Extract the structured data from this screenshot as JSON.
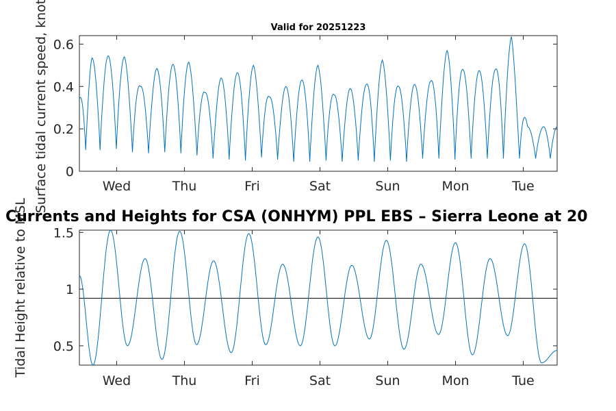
{
  "chart_data": [
    {
      "type": "line",
      "title": "Valid for 20251223",
      "ylabel": "Surface tidal current speed, knots",
      "xlabel": "",
      "xlim": [
        0,
        7.05
      ],
      "ylim": [
        0,
        0.64
      ],
      "yticks": [
        0,
        0.2,
        0.4,
        0.6
      ],
      "ytick_labels": [
        "0",
        "0.2",
        "0.4",
        "0.6"
      ],
      "xtick_positions": [
        0.55,
        1.55,
        2.55,
        3.55,
        4.55,
        5.55,
        6.55
      ],
      "xtick_labels": [
        "Wed",
        "Thu",
        "Fri",
        "Sat",
        "Sun",
        "Mon",
        "Tue"
      ],
      "line_color": "#0072bd",
      "series": [
        {
          "name": "current speed",
          "x": [
            0.0,
            0.185,
            0.425,
            0.665,
            0.9,
            1.14,
            1.38,
            1.615,
            1.855,
            2.09,
            2.33,
            2.57,
            2.805,
            3.045,
            3.28,
            3.52,
            3.76,
            3.995,
            4.235,
            4.47,
            4.71,
            4.945,
            5.185,
            5.425,
            5.66,
            5.9,
            6.14,
            6.375,
            6.615,
            6.85,
            7.05
          ],
          "values": [
            0.34,
            0.535,
            0.545,
            0.54,
            0.4,
            0.485,
            0.505,
            0.515,
            0.37,
            0.44,
            0.465,
            0.5,
            0.35,
            0.4,
            0.43,
            0.5,
            0.36,
            0.39,
            0.41,
            0.525,
            0.4,
            0.41,
            0.425,
            0.57,
            0.48,
            0.475,
            0.48,
            0.635,
            0.21,
            0.21,
            0.21
          ],
          "minima": [
            0.1,
            0.1,
            0.105,
            0.09,
            0.085,
            0.09,
            0.085,
            0.075,
            0.06,
            0.055,
            0.05,
            0.065,
            0.055,
            0.045,
            0.045,
            0.05,
            0.045,
            0.05,
            0.045,
            0.05,
            0.045,
            0.06,
            0.06,
            0.055,
            0.06,
            0.06,
            0.06
          ]
        }
      ]
    },
    {
      "type": "line",
      "title": "Currents and Heights for CSA (ONHYM) PPL EBS  – Sierra Leone at 20",
      "ylabel": "Tidal Height relative to MSL",
      "xlabel": "",
      "xlim": [
        0,
        7.05
      ],
      "ylim": [
        0.33,
        1.52
      ],
      "yticks": [
        0.5,
        1,
        1.5
      ],
      "ytick_labels": [
        "0.5",
        "1",
        "1.5"
      ],
      "xtick_positions": [
        0.55,
        1.55,
        2.55,
        3.55,
        4.55,
        5.55,
        6.55
      ],
      "xtick_labels": [
        "Wed",
        "Thu",
        "Fri",
        "Sat",
        "Sun",
        "Mon",
        "Tue"
      ],
      "reference_line": 0.92,
      "line_color": "#0072bd",
      "series": [
        {
          "name": "tidal height",
          "x": [
            0.0,
            0.2,
            0.46,
            0.71,
            0.97,
            1.22,
            1.48,
            1.73,
            1.98,
            2.24,
            2.5,
            2.75,
            3.0,
            3.26,
            3.52,
            3.77,
            4.02,
            4.28,
            4.53,
            4.79,
            5.04,
            5.3,
            5.55,
            5.8,
            6.06,
            6.32,
            6.57,
            6.82,
            7.05
          ],
          "values": [
            1.12,
            0.33,
            1.52,
            0.5,
            1.27,
            0.38,
            1.51,
            0.51,
            1.25,
            0.44,
            1.49,
            0.51,
            1.22,
            0.5,
            1.46,
            0.5,
            1.21,
            0.56,
            1.43,
            0.47,
            1.22,
            0.6,
            1.41,
            0.42,
            1.27,
            0.59,
            1.4,
            0.35,
            0.46
          ]
        }
      ]
    }
  ]
}
